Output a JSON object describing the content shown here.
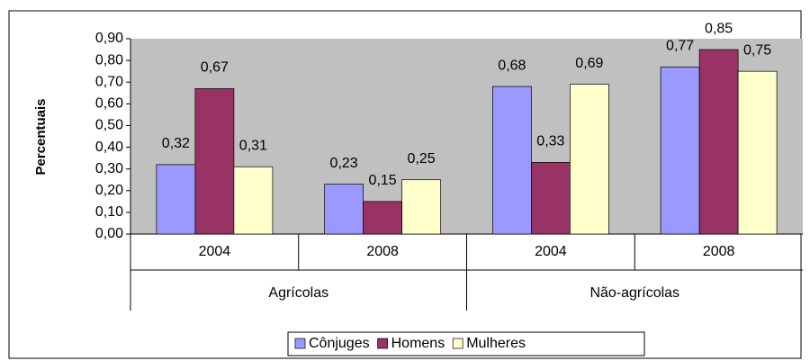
{
  "chart_data": {
    "type": "bar",
    "y_axis_label": "Percentuais",
    "groups": [
      {
        "name": "Agrícolas",
        "categories": [
          "2004",
          "2008"
        ]
      },
      {
        "name": "Não-agrícolas",
        "categories": [
          "2004",
          "2008"
        ]
      }
    ],
    "series": [
      {
        "name": "Cônjuges",
        "color": "#9999ff",
        "values": [
          0.32,
          0.23,
          0.68,
          0.77
        ],
        "value_labels": [
          "0,32",
          "0,23",
          "0,68",
          "0,77"
        ]
      },
      {
        "name": "Homens",
        "color": "#993366",
        "values": [
          0.67,
          0.15,
          0.33,
          0.85
        ],
        "value_labels": [
          "0,67",
          "0,15",
          "0,33",
          "0,85"
        ]
      },
      {
        "name": "Mulheres",
        "color": "#ffffcc",
        "values": [
          0.31,
          0.25,
          0.69,
          0.75
        ],
        "value_labels": [
          "0,31",
          "0,25",
          "0,69",
          "0,75"
        ]
      }
    ],
    "ylim": [
      0,
      0.9
    ],
    "yticks": [
      {
        "value": 0,
        "label": "0,00"
      },
      {
        "value": 0.1,
        "label": "0,10"
      },
      {
        "value": 0.2,
        "label": "0,20"
      },
      {
        "value": 0.3,
        "label": "0,30"
      },
      {
        "value": 0.4,
        "label": "0,40"
      },
      {
        "value": 0.5,
        "label": "0,50"
      },
      {
        "value": 0.6,
        "label": "0,60"
      },
      {
        "value": 0.7,
        "label": "0,70"
      },
      {
        "value": 0.8,
        "label": "0,80"
      },
      {
        "value": 0.9,
        "label": "0,90"
      }
    ],
    "plot_background": "#c0c0c0",
    "legend": "bottom"
  }
}
